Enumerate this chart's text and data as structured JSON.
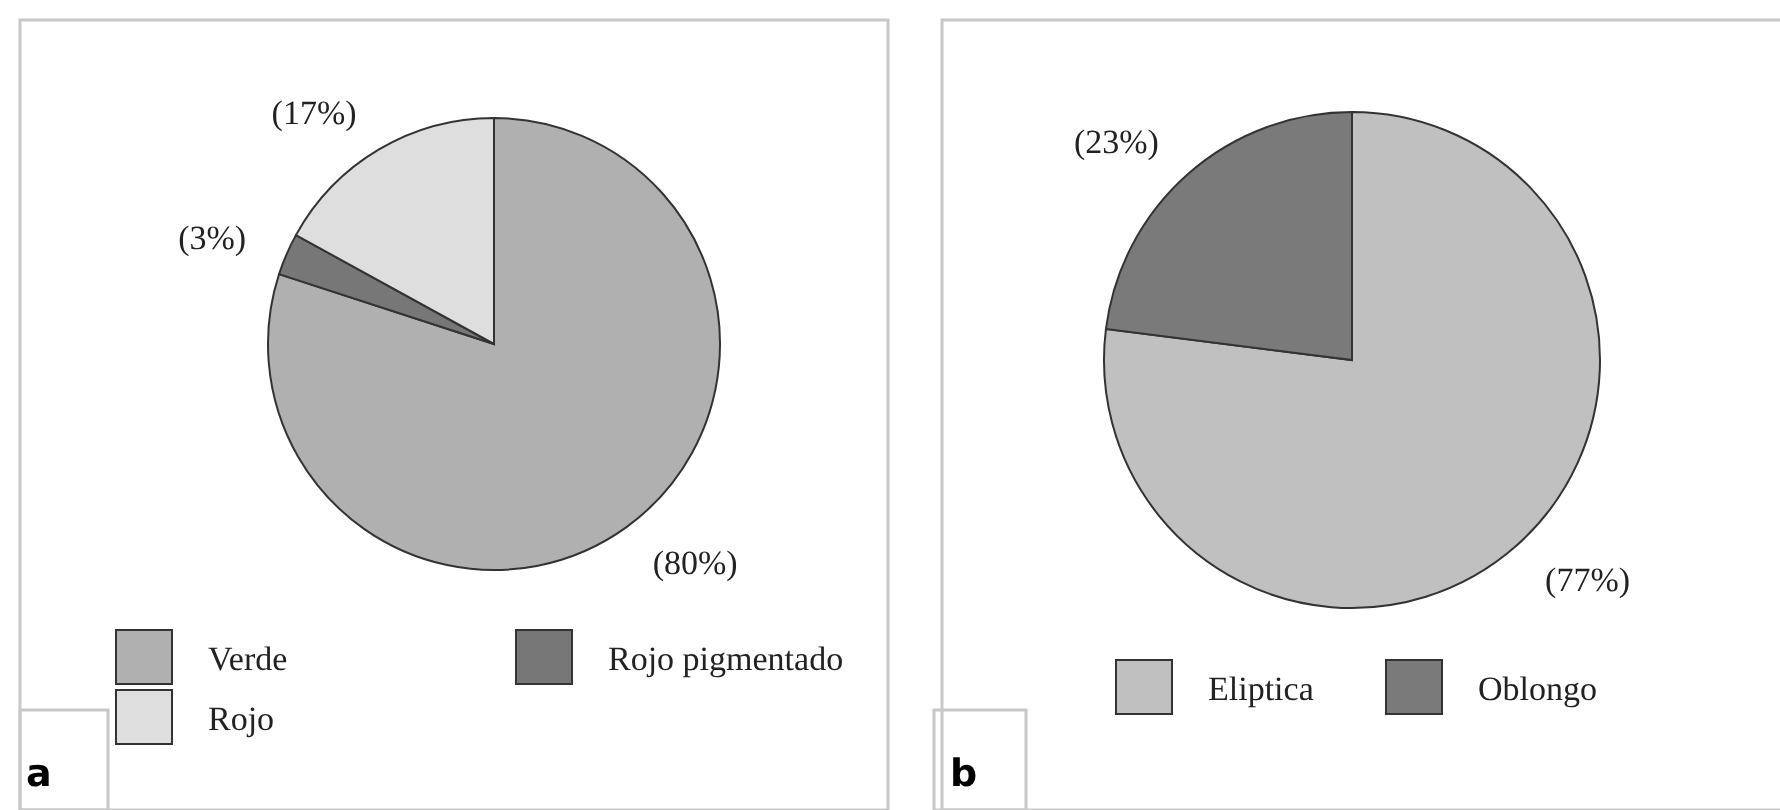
{
  "chart_data": [
    {
      "type": "pie",
      "title": "a",
      "categories": [
        "Verde",
        "Rojo pigmentado",
        "Rojo"
      ],
      "values": [
        80,
        3,
        17
      ],
      "colors": [
        "#b0b0b0",
        "#777777",
        "#dedede"
      ],
      "value_labels": [
        "(80%)",
        "(3%)",
        "(17%)"
      ],
      "legend": "bottom"
    },
    {
      "type": "pie",
      "title": "b",
      "categories": [
        "Eliptica",
        "Oblongo"
      ],
      "values": [
        77,
        23
      ],
      "colors": [
        "#c0c0c0",
        "#7a7a7a"
      ],
      "value_labels": [
        "(77%)",
        "(23%)"
      ],
      "legend": "bottom"
    }
  ]
}
